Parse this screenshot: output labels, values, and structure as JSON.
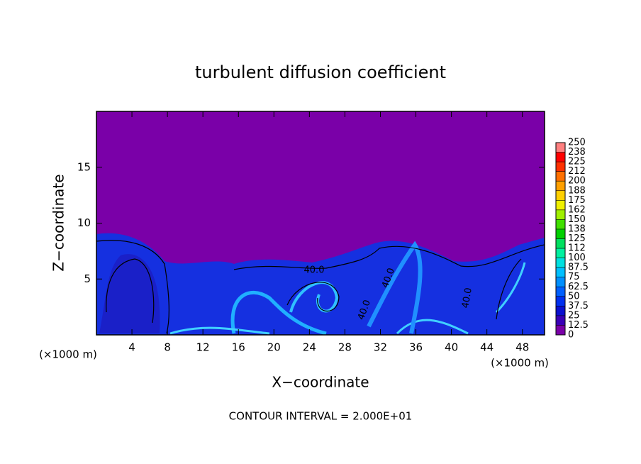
{
  "chart_data": {
    "type": "contour",
    "title": "turbulent diffusion coefficient",
    "xlabel": "X−coordinate",
    "ylabel": "Z−coordinate",
    "xunit": "(×1000 m)",
    "yunit": "(×1000 m)",
    "xlim": [
      0,
      50.5
    ],
    "ylim": [
      0,
      20
    ],
    "xticks": [
      4,
      8,
      12,
      16,
      20,
      24,
      28,
      32,
      36,
      40,
      44,
      48
    ],
    "yticks": [
      5,
      10,
      15
    ],
    "contour_labels": [
      "40.0",
      "40.0",
      "40.0",
      "40.0"
    ],
    "annotation": "CONTOUR INTERVAL = 2.000E+01",
    "colorbar": {
      "ticks": [
        0,
        {
          "value": 12.5,
          "label": "12.5"
        },
        25,
        {
          "value": 37.5,
          "label": "37.5"
        },
        50,
        {
          "value": 62.5,
          "label": "62.5"
        },
        75,
        {
          "value": 87.5,
          "label": "87.5"
        },
        100,
        {
          "value": 112.5,
          "label": "112"
        },
        125,
        {
          "value": 137.5,
          "label": "138"
        },
        150,
        {
          "value": 162.5,
          "label": "162"
        },
        175,
        {
          "value": 187.5,
          "label": "188"
        },
        200,
        {
          "value": 212.5,
          "label": "212"
        },
        225,
        {
          "value": 237.5,
          "label": "238"
        },
        250
      ],
      "colors": [
        "#7a00a8",
        "#3a00b8",
        "#0a10d0",
        "#0030f0",
        "#0060ff",
        "#0090ff",
        "#00c0ff",
        "#00e0e0",
        "#00f0a0",
        "#00e060",
        "#00d000",
        "#40e000",
        "#a0f000",
        "#f0f000",
        "#ffd000",
        "#ffa000",
        "#ff7000",
        "#ff3000",
        "#ff0000",
        "#ff8080"
      ]
    }
  }
}
